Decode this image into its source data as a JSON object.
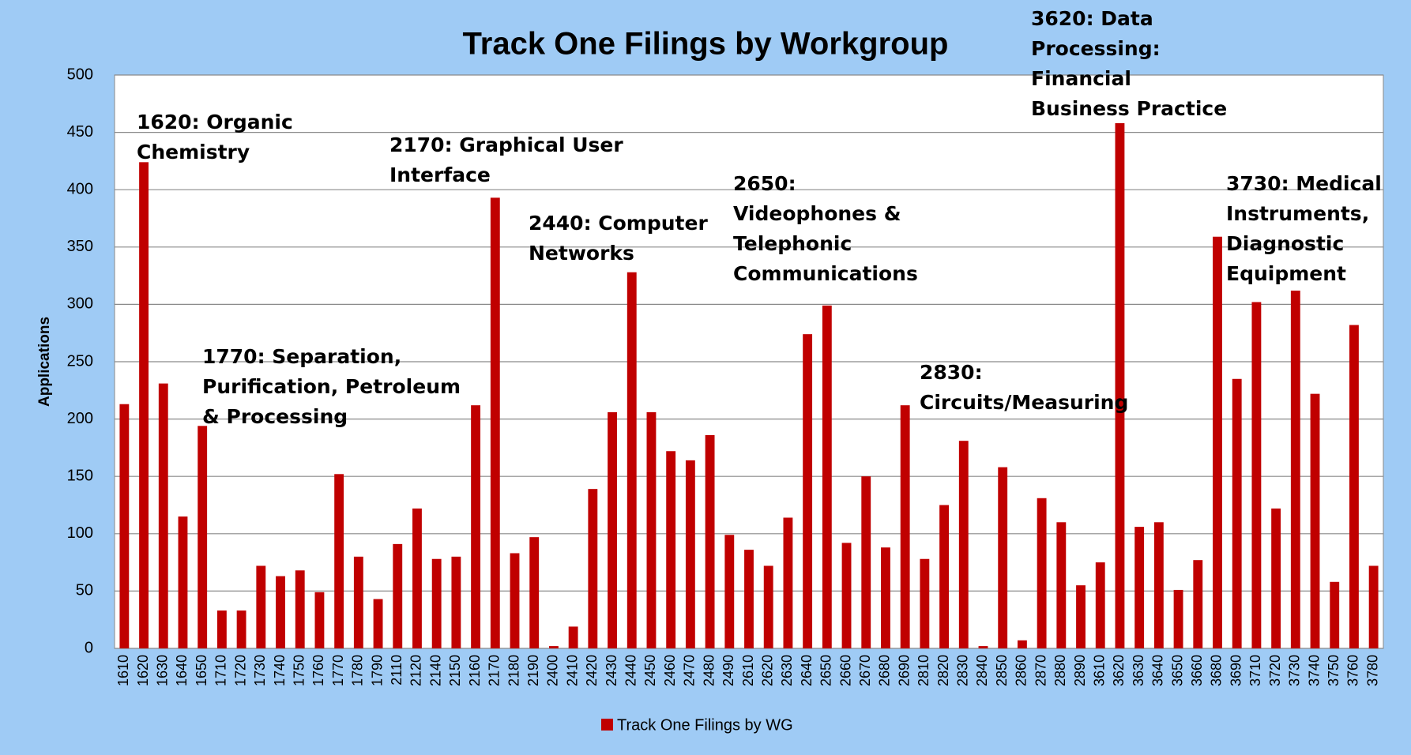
{
  "chart_data": {
    "type": "bar",
    "title": "Track One Filings by Workgroup",
    "y_label": "Applications",
    "categories": [
      "1610",
      "1620",
      "1630",
      "1640",
      "1650",
      "1710",
      "1720",
      "1730",
      "1740",
      "1750",
      "1760",
      "1770",
      "1780",
      "1790",
      "2110",
      "2120",
      "2140",
      "2150",
      "2160",
      "2170",
      "2180",
      "2190",
      "2400",
      "2410",
      "2420",
      "2430",
      "2440",
      "2450",
      "2460",
      "2470",
      "2480",
      "2490",
      "2610",
      "2620",
      "2630",
      "2640",
      "2650",
      "2660",
      "2670",
      "2680",
      "2690",
      "2810",
      "2820",
      "2830",
      "2840",
      "2850",
      "2860",
      "2870",
      "2880",
      "2890",
      "3610",
      "3620",
      "3630",
      "3640",
      "3650",
      "3660",
      "3680",
      "3690",
      "3710",
      "3720",
      "3730",
      "3740",
      "3750",
      "3760",
      "3780"
    ],
    "series": [
      {
        "name": "Track One Filings by WG",
        "color": "#c00000",
        "values": [
          213,
          424,
          231,
          115,
          194,
          33,
          33,
          72,
          63,
          68,
          49,
          152,
          80,
          43,
          91,
          122,
          78,
          80,
          212,
          393,
          83,
          97,
          2,
          19,
          139,
          206,
          328,
          206,
          172,
          164,
          186,
          99,
          86,
          72,
          114,
          274,
          299,
          92,
          150,
          88,
          212,
          78,
          125,
          181,
          2,
          158,
          7,
          131,
          110,
          55,
          75,
          458,
          106,
          110,
          51,
          77,
          359,
          235,
          302,
          122,
          312,
          222,
          58,
          282,
          72
        ]
      }
    ],
    "ylim": [
      0,
      500
    ],
    "yticks": [
      0,
      50,
      100,
      150,
      200,
      250,
      300,
      350,
      400,
      450,
      500
    ],
    "grid": true,
    "annotations": [
      [
        "1620: Organic",
        "Chemistry"
      ],
      [
        "1770: Separation,",
        "Purification, Petroleum",
        "& Processing"
      ],
      [
        "2170: Graphical User",
        "Interface"
      ],
      [
        "2440: Computer",
        "Networks"
      ],
      [
        "2650:",
        "Videophones &",
        "Telephonic",
        "Communications"
      ],
      [
        "2830:",
        "Circuits/Measuring"
      ],
      [
        "3620: Data",
        "Processing:",
        "Financial",
        "Business Practice"
      ],
      [
        "3730: Medical",
        "Instruments,",
        "Diagnostic",
        "Equipment"
      ]
    ]
  }
}
